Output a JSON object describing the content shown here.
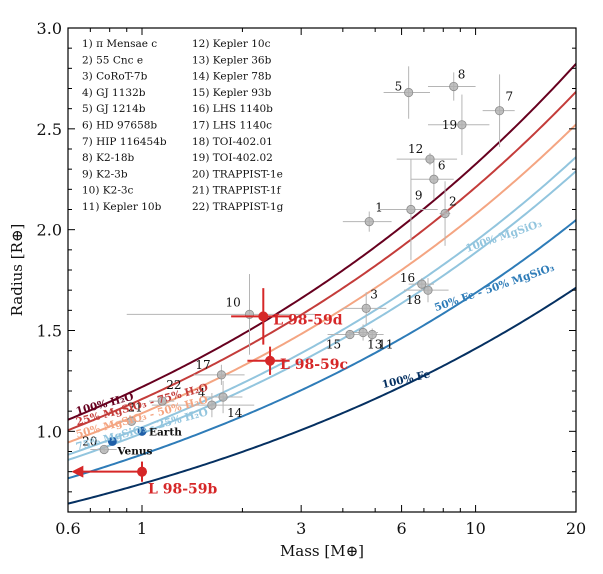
{
  "chart_data": {
    "type": "scatter",
    "xlabel": "Mass [M⊕]",
    "ylabel": "Radius [R⊕]",
    "xscale": "log",
    "xlim": [
      0.6,
      20
    ],
    "ylim": [
      0.6,
      3.0
    ],
    "xticks": [
      0.6,
      1,
      3,
      6,
      10,
      20
    ],
    "xtick_labels": [
      "0.6",
      "1",
      "3",
      "6",
      "10",
      "20"
    ],
    "yticks": [
      1.0,
      1.5,
      2.0,
      2.5,
      3.0
    ],
    "ytick_labels": [
      "1.0",
      "1.5",
      "2.0",
      "2.5",
      "3.0"
    ],
    "grid": false,
    "legend_list": [
      "1) π Mensae c",
      "2) 55 Cnc e",
      "3) CoRoT-7b",
      "4) GJ 1132b",
      "5) GJ 1214b",
      "6) HD 97658b",
      "7) HIP 116454b",
      "8) K2-18b",
      "9) K2-3b",
      "10) K2-3c",
      "11) Kepler 10b",
      "12) Kepler 10c",
      "13) Kepler 36b",
      "14) Kepler 78b",
      "15) Kepler 93b",
      "16) LHS 1140b",
      "17) LHS 1140c",
      "18) TOI-402.01",
      "19) TOI-402.02",
      "20) TRAPPIST-1e",
      "21) TRAPPIST-1f",
      "22) TRAPPIST-1g"
    ],
    "composition_curves": [
      {
        "name": "100% H₂O",
        "color": "#67001f",
        "coef": 1.22
      },
      {
        "name": "25% MgSiO₃ - 75% H₂O",
        "color": "#c43c3a",
        "coef": 1.16
      },
      {
        "name": "50% MgSiO₃ - 50% H₂O",
        "color": "#f4a582",
        "coef": 1.09
      },
      {
        "name": "75% MgSiO₃ - 25% H₂O",
        "color": "#92c5de",
        "coef": 1.02
      },
      {
        "name": "100% MgSiO₃",
        "color": "#92c5de",
        "coef": 0.99
      },
      {
        "name": "50% Fe - 50% MgSiO₃",
        "color": "#2e7cb8",
        "coef": 0.885
      },
      {
        "name": "100% Fe",
        "color": "#053061",
        "coef": 0.74
      }
    ],
    "curve_exponent": 0.28,
    "literature_planets": [
      {
        "label": "1",
        "mass": 4.8,
        "radius": 2.04,
        "mass_err": 0.8,
        "radius_err": 0.05
      },
      {
        "label": "2",
        "mass": 8.1,
        "radius": 2.08,
        "mass_err": 0.3,
        "radius_err": 0.16
      },
      {
        "label": "3",
        "mass": 4.7,
        "radius": 1.61,
        "mass_err": 0.7,
        "radius_err": 0.08
      },
      {
        "label": "4",
        "mass": 1.62,
        "radius": 1.13,
        "mass_err": 0.55,
        "radius_err": 0.06
      },
      {
        "label": "5",
        "mass": 6.3,
        "radius": 2.68,
        "mass_err": 1.0,
        "radius_err": 0.13
      },
      {
        "label": "6",
        "mass": 7.5,
        "radius": 2.25,
        "mass_err": 1.1,
        "radius_err": 0.1
      },
      {
        "label": "7",
        "mass": 11.8,
        "radius": 2.59,
        "mass_err": 1.3,
        "radius_err": 0.18
      },
      {
        "label": "8",
        "mass": 8.6,
        "radius": 2.71,
        "mass_err": 1.4,
        "radius_err": 0.07
      },
      {
        "label": "9",
        "mass": 6.4,
        "radius": 2.1,
        "mass_err": 1.3,
        "radius_err": 0.25
      },
      {
        "label": "10",
        "mass": 2.1,
        "radius": 1.58,
        "mass_err": 1.2,
        "radius_err": 0.2
      },
      {
        "label": "11",
        "mass": 4.9,
        "radius": 1.48,
        "mass_err": 0.4,
        "radius_err": 0.03
      },
      {
        "label": "12",
        "mass": 7.3,
        "radius": 2.35,
        "mass_err": 1.5,
        "radius_err": 0.03
      },
      {
        "label": "13",
        "mass": 4.6,
        "radius": 1.49,
        "mass_err": 0.5,
        "radius_err": 0.04
      },
      {
        "label": "14",
        "mass": 1.75,
        "radius": 1.17,
        "mass_err": 0.25,
        "radius_err": 0.08
      },
      {
        "label": "15",
        "mass": 4.2,
        "radius": 1.48,
        "mass_err": 0.6,
        "radius_err": 0.02
      },
      {
        "label": "16",
        "mass": 6.9,
        "radius": 1.73,
        "mass_err": 0.6,
        "radius_err": 0.03
      },
      {
        "label": "17",
        "mass": 1.73,
        "radius": 1.28,
        "mass_err": 0.3,
        "radius_err": 0.05
      },
      {
        "label": "18",
        "mass": 7.2,
        "radius": 1.7,
        "mass_err": 1.1,
        "radius_err": 0.06
      },
      {
        "label": "19",
        "mass": 9.1,
        "radius": 2.52,
        "mass_err": 1.9,
        "radius_err": 0.15
      },
      {
        "label": "20",
        "mass": 0.77,
        "radius": 0.91,
        "mass_err": 0.07,
        "radius_err": 0.01
      },
      {
        "label": "21",
        "mass": 0.93,
        "radius": 1.05,
        "mass_err": 0.08,
        "radius_err": 0.01
      },
      {
        "label": "22",
        "mass": 1.15,
        "radius": 1.15,
        "mass_err": 0.1,
        "radius_err": 0.01
      }
    ],
    "solar_system": [
      {
        "name": "Earth",
        "mass": 1.0,
        "radius": 1.0
      },
      {
        "name": "Venus",
        "mass": 0.815,
        "radius": 0.95
      }
    ],
    "highlighted_planets": [
      {
        "name": "L 98-59b",
        "mass": 1.0,
        "radius": 0.8,
        "upper_limit": true,
        "radius_err": 0.05
      },
      {
        "name": "L 98-59c",
        "mass": 2.42,
        "radius": 1.35,
        "mass_err": 0.35,
        "radius_err": 0.07
      },
      {
        "name": "L 98-59d",
        "mass": 2.31,
        "radius": 1.57,
        "mass_err": 0.46,
        "radius_err": 0.14
      }
    ],
    "colors": {
      "literature": "#9a9a9a",
      "highlight": "#d62728",
      "solar_system": "#1f5fa8"
    }
  }
}
